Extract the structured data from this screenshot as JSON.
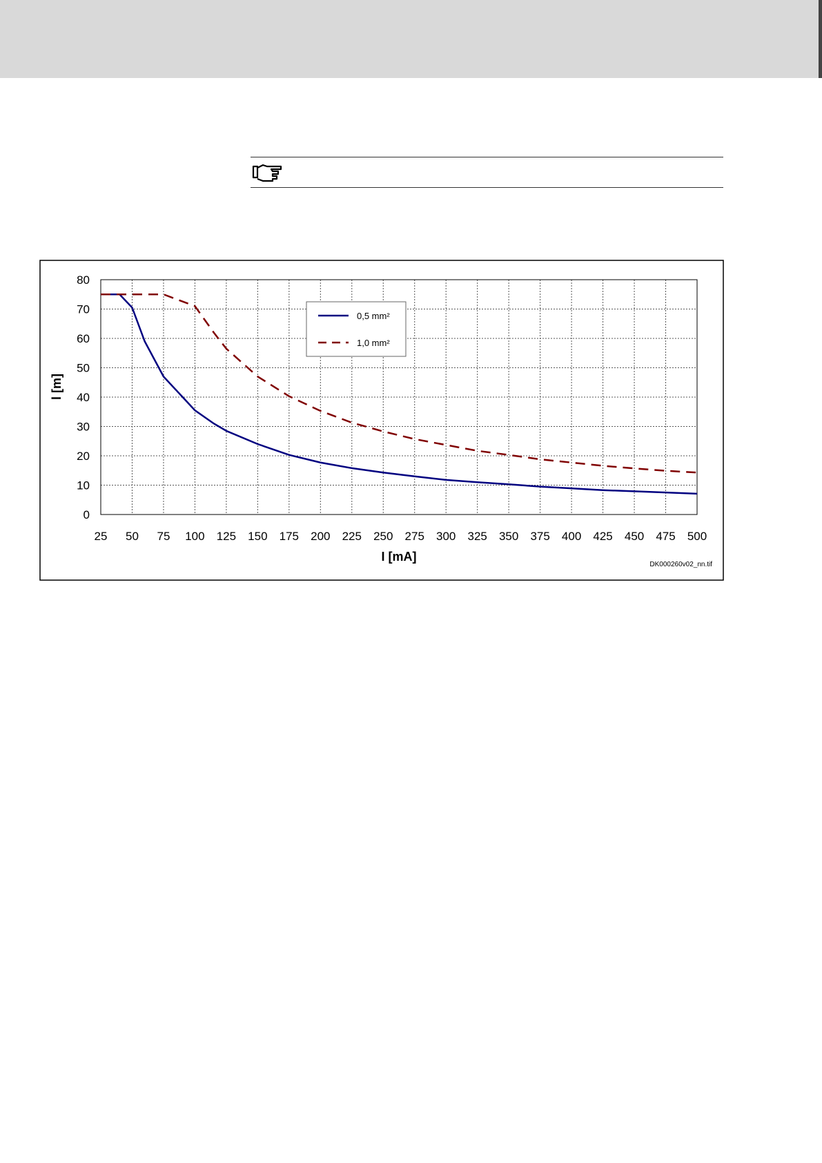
{
  "chart_data": {
    "type": "line",
    "xlabel": "I [mA]",
    "ylabel": "l [m]",
    "annotation": "DK000260v02_nn.tif",
    "xlim": [
      25,
      500
    ],
    "ylim": [
      0,
      80
    ],
    "xticks": [
      25,
      50,
      75,
      100,
      125,
      150,
      175,
      200,
      225,
      250,
      275,
      300,
      325,
      350,
      375,
      400,
      425,
      450,
      475,
      500
    ],
    "yticks": [
      0,
      10,
      20,
      30,
      40,
      50,
      60,
      70,
      80
    ],
    "grid": true,
    "legend": "upper-center",
    "x": [
      25,
      40,
      50,
      60,
      75,
      100,
      115,
      125,
      150,
      175,
      200,
      225,
      250,
      275,
      300,
      325,
      350,
      375,
      400,
      425,
      450,
      475,
      500
    ],
    "series": [
      {
        "name": "0,5 mm²",
        "color": "#000080",
        "style": "solid",
        "values": [
          75,
          75,
          70.5,
          59,
          47,
          35.5,
          31,
          28.5,
          24,
          20.3,
          17.7,
          15.8,
          14.3,
          13,
          11.8,
          11,
          10.3,
          9.5,
          8.9,
          8.3,
          7.9,
          7.5,
          7.1
        ]
      },
      {
        "name": "1,0 mm²",
        "color": "#800000",
        "style": "dashed",
        "values": [
          75,
          75,
          75,
          75,
          75,
          71,
          62,
          56.5,
          47,
          40.3,
          35.3,
          31.3,
          28.3,
          25.7,
          23.7,
          21.7,
          20.3,
          18.8,
          17.7,
          16.6,
          15.7,
          14.9,
          14.3
        ]
      }
    ]
  }
}
